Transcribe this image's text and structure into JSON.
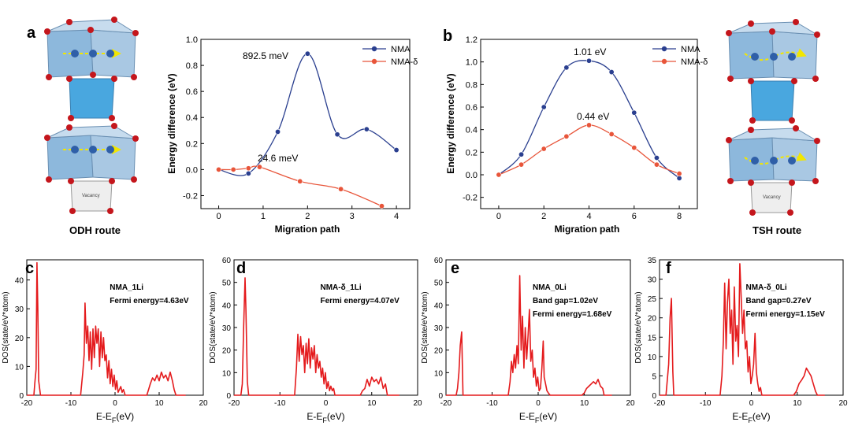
{
  "colors": {
    "nma": "#2a3f8f",
    "nma_delta": "#e8553a",
    "dos": "#e41a1c",
    "poly_light": "#a9c8e3",
    "poly_dark": "#5aa7d6",
    "oxygen": "#c4161c",
    "ion": "#2f5fa8",
    "arrow": "#f2e600"
  },
  "panels": {
    "a": {
      "letter": "a",
      "route": "ODH route",
      "vacancy": "Vacancy"
    },
    "b": {
      "letter": "b",
      "route": "TSH route",
      "vacancy": "Vacancy"
    }
  },
  "chart_data": [
    {
      "id": "a",
      "type": "line",
      "xlabel": "Migration path",
      "ylabel": "Energy difference (eV)",
      "xlim": [
        -0.4,
        4.3
      ],
      "ylim": [
        -0.3,
        1.0
      ],
      "xticks": [
        0,
        1,
        2,
        3,
        4
      ],
      "yticks": [
        -0.2,
        0.0,
        0.2,
        0.4,
        0.6,
        0.8,
        1.0
      ],
      "xtick_labels": [
        "0",
        "1",
        "2",
        "3",
        "4"
      ],
      "ytick_labels": [
        "-0.2",
        "0.0",
        "0.2",
        "0.4",
        "0.6",
        "0.8",
        "1.0"
      ],
      "legend": [
        "NMA",
        "NMA-δ"
      ],
      "series": [
        {
          "name": "NMA",
          "x": [
            0,
            0.67,
            1.33,
            2.0,
            2.67,
            3.33,
            4.0
          ],
          "y": [
            0.0,
            -0.03,
            0.29,
            0.89,
            0.27,
            0.31,
            0.15
          ]
        },
        {
          "name": "NMA-δ",
          "x": [
            0,
            0.33,
            0.67,
            0.92,
            1.83,
            2.75,
            3.67
          ],
          "y": [
            0.0,
            0.0,
            0.01,
            0.02,
            -0.09,
            -0.15,
            -0.28
          ]
        }
      ],
      "annotations": [
        "892.5 meV",
        "24.6 meV"
      ]
    },
    {
      "id": "b",
      "type": "line",
      "xlabel": "Migration path",
      "ylabel": "Energy difference (eV)",
      "xlim": [
        -0.8,
        8.8
      ],
      "ylim": [
        -0.3,
        1.2
      ],
      "xticks": [
        0,
        2,
        4,
        6,
        8
      ],
      "yticks": [
        -0.2,
        0.0,
        0.2,
        0.4,
        0.6,
        0.8,
        1.0,
        1.2
      ],
      "xtick_labels": [
        "0",
        "2",
        "4",
        "6",
        "8"
      ],
      "ytick_labels": [
        "-0.2",
        "0.0",
        "0.2",
        "0.4",
        "0.6",
        "0.8",
        "1.0",
        "1.2"
      ],
      "legend": [
        "NMA",
        "NMA-δ"
      ],
      "series": [
        {
          "name": "NMA",
          "x": [
            0,
            1,
            2,
            3,
            4,
            5,
            6,
            7,
            8
          ],
          "y": [
            0.0,
            0.18,
            0.6,
            0.95,
            1.01,
            0.91,
            0.55,
            0.15,
            -0.03
          ]
        },
        {
          "name": "NMA-δ",
          "x": [
            0,
            1,
            2,
            3,
            4,
            5,
            6,
            7,
            8
          ],
          "y": [
            0.0,
            0.09,
            0.23,
            0.34,
            0.44,
            0.36,
            0.24,
            0.09,
            0.01
          ]
        }
      ],
      "annotations": [
        "1.01 eV",
        "0.44 eV"
      ]
    },
    {
      "id": "c",
      "type": "line",
      "xlabel": "E-E",
      "xlabel_sub": "F",
      "xlabel_tail": "(eV)",
      "ylabel": "DOS(state/eV*atom)",
      "xlim": [
        -20,
        20
      ],
      "ylim": [
        0,
        47
      ],
      "xticks": [
        -20,
        -10,
        0,
        10,
        20
      ],
      "yticks": [
        0,
        10,
        20,
        30,
        40
      ],
      "xtick_labels": [
        "-20",
        "-10",
        "0",
        "10",
        "20"
      ],
      "ytick_labels": [
        "0",
        "10",
        "20",
        "30",
        "40"
      ],
      "labels": [
        "NMA_1Li",
        "Fermi energy=4.63eV"
      ],
      "series": [
        {
          "name": "DOS",
          "x": [
            -20,
            -18.4,
            -18.2,
            -17.9,
            -17.7,
            -17.5,
            -17.3,
            -16.9,
            -7.8,
            -7.3,
            -7.0,
            -6.8,
            -6.5,
            -6.2,
            -5.9,
            -5.6,
            -5.3,
            -5.0,
            -4.7,
            -4.4,
            -4.1,
            -3.8,
            -3.5,
            -3.2,
            -2.9,
            -2.6,
            -2.3,
            -2.0,
            -1.7,
            -1.4,
            -1.1,
            -0.8,
            -0.5,
            -0.2,
            0.1,
            0.4,
            0.7,
            1.0,
            1.3,
            1.6,
            1.9,
            2.3,
            7.2,
            7.6,
            8.0,
            8.5,
            9.0,
            9.5,
            10.0,
            10.5,
            11.0,
            11.5,
            12.0,
            12.5,
            13.0,
            13.4,
            13.8,
            16
          ],
          "y": [
            0,
            0,
            4,
            9,
            46,
            30,
            5,
            0,
            0,
            8,
            14,
            32,
            18,
            24,
            12,
            22,
            9,
            23,
            13,
            24,
            18,
            23,
            10,
            22,
            13,
            20,
            12,
            14,
            6,
            12,
            4,
            9,
            3,
            7,
            2,
            5,
            1,
            2,
            3,
            1,
            2,
            0,
            0,
            2,
            4,
            6,
            5,
            7,
            5,
            8,
            6,
            7,
            5,
            8,
            5,
            2,
            0,
            0
          ]
        }
      ]
    },
    {
      "id": "d",
      "type": "line",
      "xlabel": "E-E",
      "xlabel_sub": "F",
      "xlabel_tail": "(eV)",
      "ylabel": "DOS(state/eV*atom)",
      "xlim": [
        -20,
        20
      ],
      "ylim": [
        0,
        60
      ],
      "xticks": [
        -20,
        -10,
        0,
        10,
        20
      ],
      "yticks": [
        0,
        10,
        20,
        30,
        40,
        50,
        60
      ],
      "xtick_labels": [
        "-20",
        "-10",
        "0",
        "10",
        "20"
      ],
      "ytick_labels": [
        "0",
        "10",
        "20",
        "30",
        "40",
        "50",
        "60"
      ],
      "labels": [
        "NMA-δ_1Li",
        "Fermi energy=4.07eV"
      ],
      "series": [
        {
          "name": "DOS",
          "x": [
            -20,
            -18.5,
            -18.2,
            -17.9,
            -17.6,
            -17.4,
            -17.1,
            -16.8,
            -6.8,
            -6.4,
            -6.1,
            -5.8,
            -5.5,
            -5.2,
            -4.9,
            -4.6,
            -4.3,
            -4.0,
            -3.7,
            -3.4,
            -3.1,
            -2.8,
            -2.5,
            -2.2,
            -1.9,
            -1.6,
            -1.3,
            -1.0,
            -0.7,
            -0.4,
            -0.1,
            0.2,
            0.5,
            0.8,
            1.1,
            1.4,
            1.7,
            2.0,
            7.5,
            8.0,
            8.5,
            9.0,
            9.5,
            10.0,
            10.5,
            11.0,
            11.5,
            12.0,
            12.5,
            13.0,
            13.4,
            16
          ],
          "y": [
            0,
            0,
            5,
            30,
            52,
            38,
            6,
            0,
            0,
            12,
            27,
            15,
            26,
            18,
            22,
            10,
            23,
            14,
            25,
            12,
            21,
            16,
            22,
            10,
            18,
            12,
            15,
            8,
            12,
            5,
            10,
            3,
            6,
            2,
            4,
            2,
            3,
            0,
            0,
            2,
            3,
            7,
            4,
            8,
            6,
            7,
            5,
            8,
            3,
            5,
            0,
            0
          ]
        }
      ]
    },
    {
      "id": "e",
      "type": "line",
      "xlabel": "E-E",
      "xlabel_sub": "F",
      "xlabel_tail": "(eV)",
      "ylabel": "DOS(state/eV*atom)",
      "xlim": [
        -20,
        20
      ],
      "ylim": [
        0,
        60
      ],
      "xticks": [
        -20,
        -10,
        0,
        10,
        20
      ],
      "yticks": [
        0,
        10,
        20,
        30,
        40,
        50,
        60
      ],
      "xtick_labels": [
        "-20",
        "-10",
        "0",
        "10",
        "20"
      ],
      "ytick_labels": [
        "0",
        "10",
        "20",
        "30",
        "40",
        "50",
        "60"
      ],
      "labels": [
        "NMA_0Li",
        "Band gap=1.02eV",
        "Fermi energy=1.68eV"
      ],
      "series": [
        {
          "name": "DOS",
          "x": [
            -20,
            -17.8,
            -17.5,
            -17.2,
            -16.9,
            -16.6,
            -16.3,
            -6.5,
            -6.1,
            -5.8,
            -5.5,
            -5.2,
            -4.9,
            -4.6,
            -4.3,
            -4.0,
            -3.7,
            -3.4,
            -3.1,
            -2.8,
            -2.5,
            -2.2,
            -1.9,
            -1.6,
            -1.3,
            -1.0,
            -0.7,
            -0.4,
            -0.1,
            0.2,
            0.5,
            0.8,
            1.1,
            1.3,
            1.6,
            1.9,
            2.2,
            2.6,
            9.5,
            10.0,
            10.5,
            11.0,
            11.5,
            12.0,
            12.5,
            13.0,
            13.5,
            14.0,
            14.3,
            16
          ],
          "y": [
            0,
            0,
            3,
            10,
            22,
            28,
            0,
            0,
            6,
            15,
            10,
            18,
            12,
            22,
            14,
            53,
            20,
            35,
            12,
            30,
            16,
            26,
            38,
            15,
            20,
            8,
            12,
            4,
            8,
            2,
            3,
            12,
            24,
            8,
            5,
            2,
            1,
            0,
            0,
            1,
            3,
            4,
            5,
            6,
            5,
            7,
            4,
            3,
            0,
            0
          ]
        }
      ]
    },
    {
      "id": "f",
      "type": "line",
      "xlabel": "E-E",
      "xlabel_sub": "F",
      "xlabel_tail": "(eV)",
      "ylabel": "DOS(state/eV*atom)",
      "xlim": [
        -20,
        20
      ],
      "ylim": [
        0,
        35
      ],
      "xticks": [
        -20,
        -10,
        0,
        10,
        20
      ],
      "yticks": [
        0,
        5,
        10,
        15,
        20,
        25,
        30,
        35
      ],
      "xtick_labels": [
        "-20",
        "-10",
        "0",
        "10",
        "20"
      ],
      "ytick_labels": [
        "0",
        "5",
        "10",
        "15",
        "20",
        "25",
        "30",
        "35"
      ],
      "labels": [
        "NMA-δ_0Li",
        "Band gap=0.27eV",
        "Fermi energy=1.15eV"
      ],
      "series": [
        {
          "name": "DOS",
          "x": [
            -20,
            -18.6,
            -18.3,
            -18.0,
            -17.7,
            -17.4,
            -17.1,
            -16.9,
            -6.8,
            -6.4,
            -6.1,
            -5.8,
            -5.5,
            -5.2,
            -4.9,
            -4.6,
            -4.3,
            -4.0,
            -3.7,
            -3.4,
            -3.1,
            -2.8,
            -2.5,
            -2.2,
            -1.9,
            -1.6,
            -1.3,
            -1.0,
            -0.7,
            -0.4,
            -0.1,
            0.2,
            0.5,
            0.8,
            1.1,
            1.4,
            1.7,
            2.0,
            2.3,
            9.2,
            9.8,
            10.4,
            11.0,
            11.5,
            12.0,
            12.5,
            13.0,
            13.5,
            14.0,
            14.4,
            16
          ],
          "y": [
            0,
            0,
            4,
            8,
            20,
            25,
            6,
            0,
            0,
            5,
            14,
            29,
            12,
            24,
            30,
            16,
            22,
            8,
            28,
            14,
            18,
            10,
            34,
            25,
            16,
            22,
            12,
            14,
            6,
            10,
            3,
            5,
            8,
            16,
            6,
            3,
            1,
            2,
            0,
            0,
            1,
            3,
            4,
            5,
            7,
            6,
            5,
            3,
            1,
            0,
            0
          ]
        }
      ]
    }
  ]
}
